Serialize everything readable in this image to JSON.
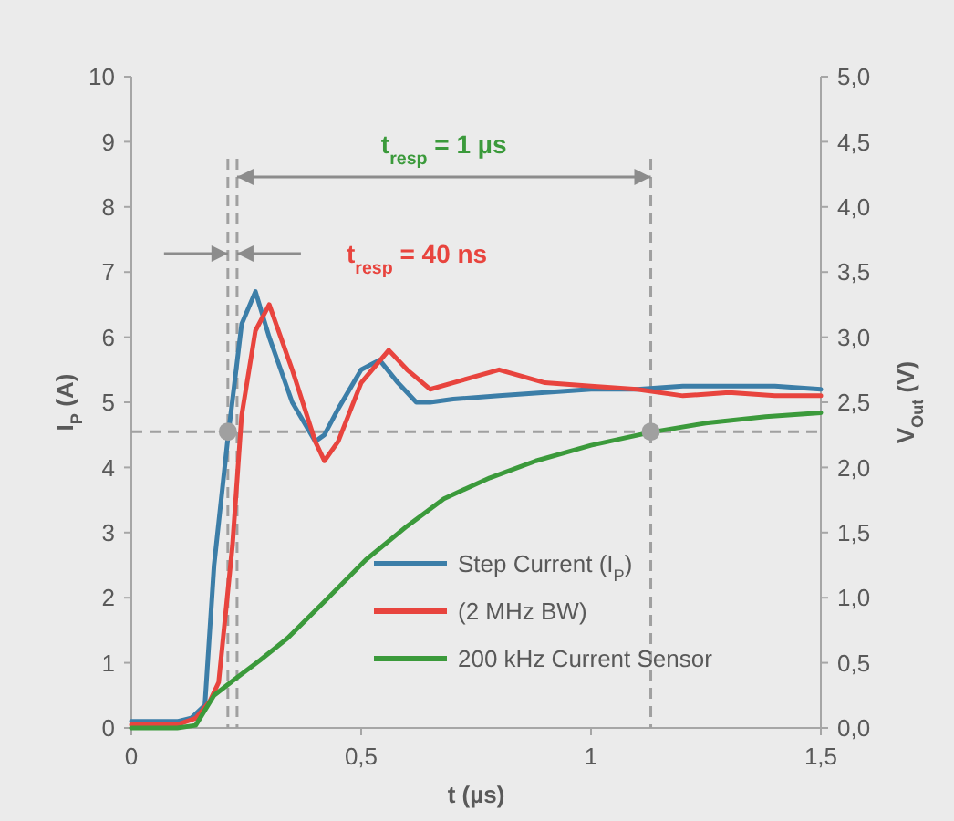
{
  "chart_data": {
    "type": "line",
    "xlabel": "t (µs)",
    "ylabel": "I$_{P}$ (A)",
    "y2label": "V$_{Out}$ (V)",
    "xlim": [
      0,
      1.5
    ],
    "xticks": [
      0,
      {
        "value": 0.5,
        "label": "0,5"
      },
      1,
      {
        "value": 1.5,
        "label": "1,5"
      }
    ],
    "ylim": [
      0,
      10
    ],
    "yticks": [
      0,
      1,
      2,
      3,
      4,
      5,
      6,
      7,
      8,
      9,
      10
    ],
    "y2lim": [
      0,
      5
    ],
    "y2ticks": [
      {
        "value": 0,
        "label": "0,0"
      },
      {
        "value": 0.5,
        "label": "0,5"
      },
      {
        "value": 1,
        "label": "1,0"
      },
      {
        "value": 1.5,
        "label": "1,5"
      },
      {
        "value": 2,
        "label": "2,0"
      },
      {
        "value": 2.5,
        "label": "2,5"
      },
      {
        "value": 3,
        "label": "3,0"
      },
      {
        "value": 3.5,
        "label": "3,5"
      },
      {
        "value": 4,
        "label": "4,0"
      },
      {
        "value": 4.5,
        "label": "4,5"
      },
      {
        "value": 5,
        "label": "5,0"
      }
    ],
    "grid": false,
    "legend": "bottom right",
    "line_style": "solid",
    "marker": "none",
    "series": [
      {
        "name": "Step Current (I$_{P}$)",
        "color": "#3c7ea8",
        "x": [
          0,
          0.05,
          0.1,
          0.13,
          0.16,
          0.18,
          0.21,
          0.24,
          0.27,
          0.3,
          0.35,
          0.4,
          0.42,
          0.45,
          0.5,
          0.54,
          0.58,
          0.62,
          0.65,
          0.7,
          0.8,
          0.9,
          1.0,
          1.1,
          1.2,
          1.3,
          1.4,
          1.5
        ],
        "values": [
          0.1,
          0.1,
          0.1,
          0.15,
          0.35,
          2.5,
          4.45,
          6.2,
          6.7,
          6.0,
          5.0,
          4.4,
          4.5,
          4.9,
          5.5,
          5.65,
          5.3,
          5.0,
          5.0,
          5.05,
          5.1,
          5.15,
          5.2,
          5.2,
          5.25,
          5.25,
          5.25,
          5.2
        ]
      },
      {
        "name": "(2 MHz BW)",
        "color": "#e8443e",
        "x": [
          0,
          0.05,
          0.1,
          0.14,
          0.17,
          0.19,
          0.22,
          0.24,
          0.27,
          0.3,
          0.35,
          0.4,
          0.42,
          0.45,
          0.5,
          0.56,
          0.6,
          0.65,
          0.7,
          0.8,
          0.9,
          1.0,
          1.1,
          1.2,
          1.3,
          1.4,
          1.5
        ],
        "values": [
          0.05,
          0.05,
          0.05,
          0.15,
          0.4,
          0.7,
          2.8,
          4.8,
          6.1,
          6.5,
          5.5,
          4.4,
          4.1,
          4.4,
          5.3,
          5.8,
          5.5,
          5.2,
          5.3,
          5.5,
          5.3,
          5.25,
          5.2,
          5.1,
          5.15,
          5.1,
          5.1
        ]
      },
      {
        "name": "200 kHz Current Sensor",
        "color": "#3b9a3b",
        "axis": "y2",
        "x": [
          0,
          0.1,
          0.14,
          0.18,
          0.22,
          0.28,
          0.34,
          0.42,
          0.51,
          0.6,
          0.68,
          0.78,
          0.88,
          1.0,
          1.13,
          1.25,
          1.38,
          1.5
        ],
        "values": [
          0,
          0,
          0.02,
          0.25,
          0.36,
          0.52,
          0.69,
          0.97,
          1.29,
          1.55,
          1.76,
          1.92,
          2.05,
          2.17,
          2.27,
          2.34,
          2.39,
          2.42
        ]
      },
      {
        "type": "scatter",
        "color": "#a0a0a0",
        "marker": "circle",
        "x": [
          0.21,
          1.13
        ],
        "values": [
          4.55,
          4.55
        ]
      }
    ],
    "ref_lines": [
      {
        "axis": "y",
        "value": 4.55,
        "color": "#a0a0a0",
        "line_style": "dashed"
      },
      {
        "axis": "x",
        "value": 0.21,
        "color": "#a0a0a0",
        "line_style": "dashed"
      },
      {
        "axis": "x",
        "value": 0.23,
        "color": "#a0a0a0",
        "line_style": "dashed"
      },
      {
        "axis": "x",
        "value": 1.13,
        "color": "#a0a0a0",
        "line_style": "dashed"
      }
    ],
    "annotations": [
      "t$_{resp}$ = 1 µs",
      "t$_{resp}$ = 40 ns"
    ]
  }
}
